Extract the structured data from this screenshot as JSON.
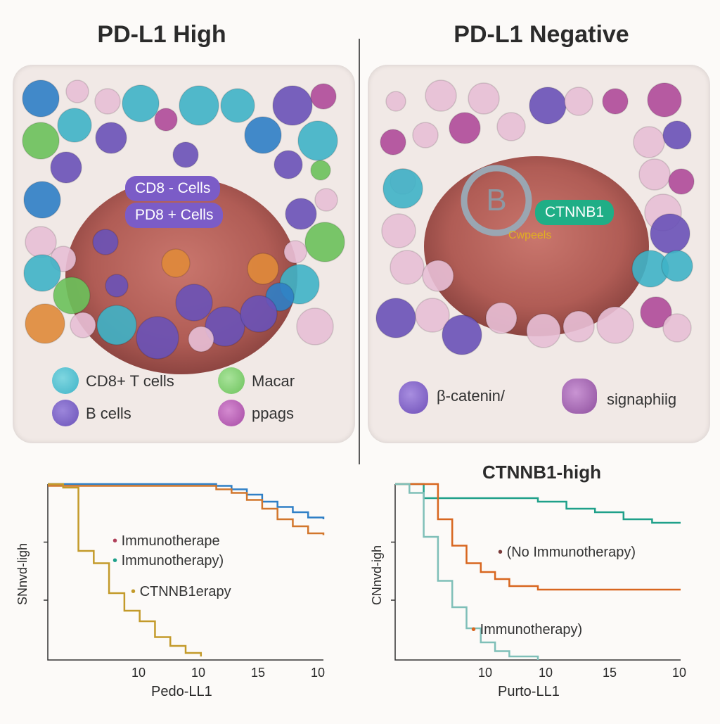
{
  "panels": {
    "left_title": "PD-L1 High",
    "right_title": "PD-L1 Negative",
    "left_tags": [
      "CD8 - Cells",
      "PD8 + Cells"
    ],
    "right_tags": [
      "CTNNB1",
      "Cwpeels"
    ],
    "right_ring_letter": "B",
    "left_legend": [
      "CD8+ T cells",
      "Macar",
      "B cells",
      "ppags"
    ],
    "right_legend": [
      "β-catenin/",
      "signaphiig"
    ],
    "colors": {
      "teal": "#3fb3c7",
      "blue": "#2f7fc6",
      "purple": "#6a52b8",
      "green": "#6cc25b",
      "orange": "#e08a3a",
      "pink": "#e8bfd6",
      "magenta": "#b04b9a",
      "tumor": "#b5605a"
    }
  },
  "chart_data": [
    {
      "type": "line",
      "title": "",
      "ylabel": "SNnvd-ligh",
      "xlabel": "Pedo-LL1",
      "x_ticks": [
        "10",
        "10",
        "15",
        "10"
      ],
      "legend": [
        "Immunotherape",
        "Immunotherapy)",
        "CTNNB1erapy"
      ],
      "series": [
        {
          "color": "#2f7fc6",
          "x": [
            0,
            10,
            11,
            12,
            13,
            14,
            15,
            16,
            17,
            18
          ],
          "y": [
            1.0,
            1.0,
            0.99,
            0.97,
            0.94,
            0.9,
            0.87,
            0.84,
            0.81,
            0.8
          ]
        },
        {
          "color": "#d2762c",
          "x": [
            0,
            10,
            11,
            12,
            13,
            14,
            15,
            16,
            17,
            18
          ],
          "y": [
            0.99,
            0.99,
            0.97,
            0.95,
            0.91,
            0.86,
            0.8,
            0.76,
            0.72,
            0.71
          ]
        },
        {
          "color": "#c39a2a",
          "x": [
            0,
            1,
            2,
            3,
            4,
            5,
            6,
            7,
            8,
            9,
            10
          ],
          "y": [
            1.0,
            0.98,
            0.62,
            0.55,
            0.38,
            0.28,
            0.22,
            0.13,
            0.08,
            0.04,
            0.02
          ]
        }
      ]
    },
    {
      "type": "line",
      "title": "CTNNB1-high",
      "ylabel": "CNnvd-igh",
      "xlabel": "Purto-LL1",
      "x_ticks": [
        "10",
        "10",
        "15",
        "10"
      ],
      "legend": [
        "(No Immunotherapy)",
        "Immunotherapy)"
      ],
      "series": [
        {
          "color": "#1fa08a",
          "x": [
            0,
            2,
            6,
            10,
            12,
            14,
            16,
            18,
            20
          ],
          "y": [
            1.0,
            0.92,
            0.92,
            0.9,
            0.86,
            0.84,
            0.8,
            0.78,
            0.78
          ]
        },
        {
          "color": "#d8661f",
          "x": [
            0,
            2,
            3,
            4,
            5,
            6,
            7,
            8,
            10,
            20
          ],
          "y": [
            1.0,
            1.0,
            0.8,
            0.65,
            0.55,
            0.5,
            0.46,
            0.42,
            0.4,
            0.4
          ]
        },
        {
          "color": "#7fbfb8",
          "x": [
            0,
            1,
            2,
            3,
            4,
            5,
            6,
            7,
            8,
            10
          ],
          "y": [
            1.0,
            0.95,
            0.7,
            0.45,
            0.3,
            0.18,
            0.1,
            0.05,
            0.02,
            0.0
          ]
        }
      ]
    }
  ]
}
